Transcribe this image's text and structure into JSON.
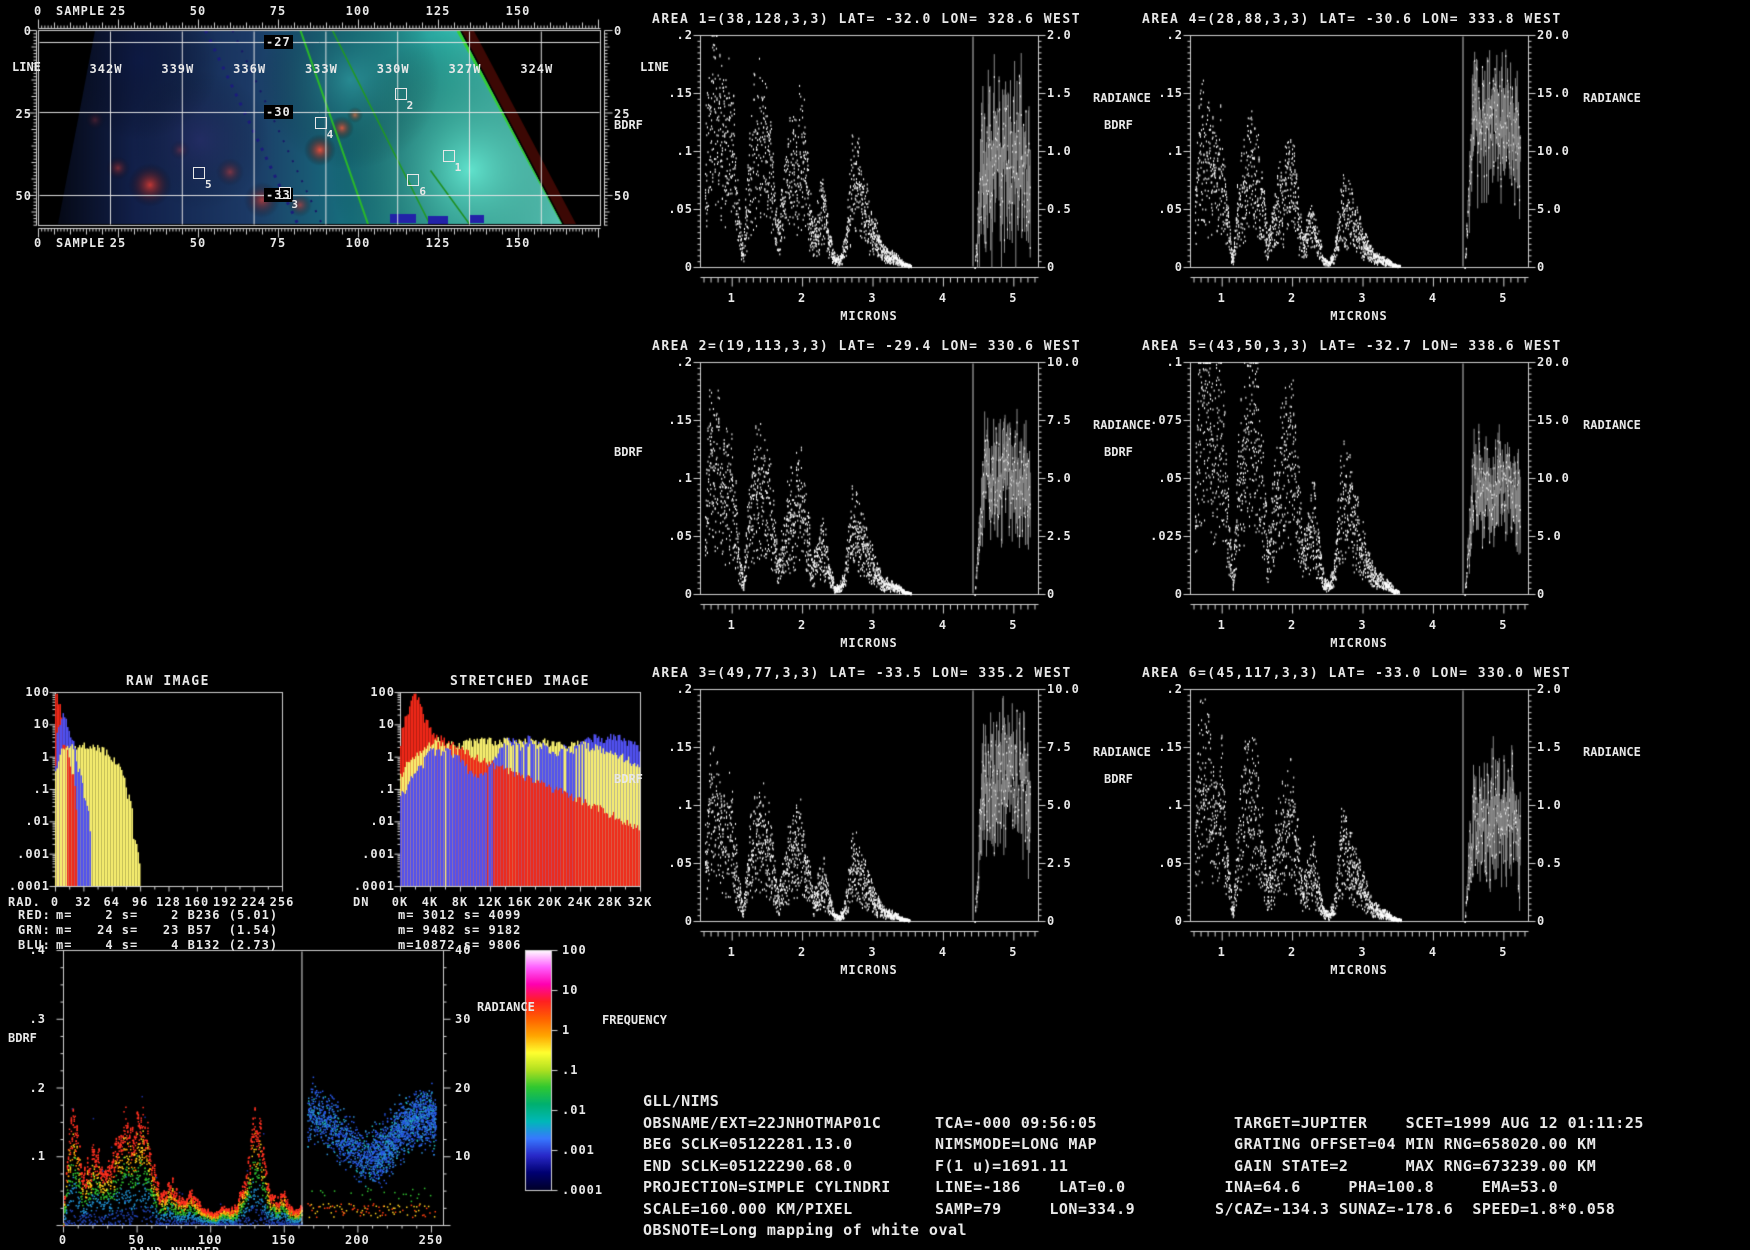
{
  "map_panel": {
    "sample_label": "SAMPLE",
    "line_label": "LINE",
    "sample_ticks": [
      "0",
      "25",
      "50",
      "75",
      "100",
      "125",
      "150"
    ],
    "line_ticks": [
      "0",
      "25",
      "50"
    ],
    "lon_labels": [
      "342W",
      "339W",
      "336W",
      "333W",
      "330W",
      "327W",
      "324W"
    ],
    "lat_labels": [
      "-27",
      "-30",
      "-33"
    ],
    "areas": [
      {
        "num": "1",
        "line": 38,
        "samp": 128
      },
      {
        "num": "2",
        "line": 19,
        "samp": 113
      },
      {
        "num": "3",
        "line": 49,
        "samp": 77
      },
      {
        "num": "4",
        "line": 28,
        "samp": 88
      },
      {
        "num": "5",
        "line": 43,
        "samp": 50
      },
      {
        "num": "6",
        "line": 45,
        "samp": 117
      }
    ]
  },
  "chart_data": {
    "spectra": [
      {
        "type": "scatter",
        "title": "AREA 1=(38,128,3,3) LAT= -32.0 LON= 328.6 WEST",
        "left_label": "BDRF",
        "right_label": "RADIANCE",
        "x_label": "MICRONS",
        "left_ticks": [
          ".2",
          ".15",
          ".1",
          ".05",
          "0"
        ],
        "right_ticks": [
          "2.0",
          "1.5",
          "1.0",
          "0.5",
          "0"
        ],
        "x_ticks": [
          "1",
          "2",
          "3",
          "4",
          "5"
        ],
        "xlim": [
          0.55,
          5.35
        ],
        "bdrf_max": 0.2,
        "rad_max": 2.0,
        "bdrf_peak": 0.18,
        "rad_mean": 0.85,
        "rad_spread": 0.5,
        "divider_x": 4.42,
        "seed": 101
      },
      {
        "type": "scatter",
        "title": "AREA 2=(19,113,3,3) LAT= -29.4 LON= 330.6 WEST",
        "left_label": "BDRF",
        "right_label": "RADIANCE",
        "x_label": "MICRONS",
        "left_ticks": [
          ".2",
          ".15",
          ".1",
          ".05",
          "0"
        ],
        "right_ticks": [
          "10.0",
          "7.5",
          "5.0",
          "2.5",
          "0"
        ],
        "x_ticks": [
          "1",
          "2",
          "3",
          "4",
          "5"
        ],
        "xlim": [
          0.55,
          5.35
        ],
        "bdrf_max": 0.2,
        "rad_max": 10.0,
        "bdrf_peak": 0.15,
        "rad_mean": 5.0,
        "rad_spread": 1.7,
        "divider_x": 4.42,
        "seed": 202
      },
      {
        "type": "scatter",
        "title": "AREA 3=(49,77,3,3) LAT= -33.5 LON= 335.2 WEST",
        "left_label": "BDRF",
        "right_label": "RADIANCE",
        "x_label": "MICRONS",
        "left_ticks": [
          ".2",
          ".15",
          ".1",
          ".05",
          "0"
        ],
        "right_ticks": [
          "10.0",
          "7.5",
          "5.0",
          "2.5",
          "0"
        ],
        "x_ticks": [
          "1",
          "2",
          "3",
          "4",
          "5"
        ],
        "xlim": [
          0.55,
          5.35
        ],
        "bdrf_max": 0.2,
        "rad_max": 10.0,
        "bdrf_peak": 0.12,
        "rad_mean": 6.2,
        "rad_spread": 1.9,
        "divider_x": 4.42,
        "seed": 303
      },
      {
        "type": "scatter",
        "title": "AREA 4=(28,88,3,3) LAT= -30.6 LON= 333.8 WEST",
        "left_label": "BDRF",
        "right_label": "RADIANCE",
        "x_label": "MICRONS",
        "left_ticks": [
          ".2",
          ".15",
          ".1",
          ".05",
          "0"
        ],
        "right_ticks": [
          "20.0",
          "15.0",
          "10.0",
          "5.0",
          "0"
        ],
        "x_ticks": [
          "1",
          "2",
          "3",
          "4",
          "5"
        ],
        "xlim": [
          0.55,
          5.35
        ],
        "bdrf_max": 0.2,
        "rad_max": 20.0,
        "bdrf_peak": 0.13,
        "rad_mean": 12.2,
        "rad_spread": 3.6,
        "divider_x": 4.42,
        "seed": 404
      },
      {
        "type": "scatter",
        "title": "AREA 5=(43,50,3,3) LAT= -32.7 LON= 338.6 WEST",
        "left_label": "BDRF",
        "right_label": "RADIANCE",
        "x_label": "MICRONS",
        "left_ticks": [
          ".1",
          ".075",
          ".05",
          ".025",
          "0"
        ],
        "right_ticks": [
          "20.0",
          "15.0",
          "10.0",
          "5.0",
          "0"
        ],
        "x_ticks": [
          "1",
          "2",
          "3",
          "4",
          "5"
        ],
        "xlim": [
          0.55,
          5.35
        ],
        "bdrf_max": 0.1,
        "rad_max": 20.0,
        "bdrf_peak": 0.11,
        "rad_mean": 9.3,
        "rad_spread": 2.9,
        "divider_x": 4.42,
        "seed": 505
      },
      {
        "type": "scatter",
        "title": "AREA 6=(45,117,3,3) LAT= -33.0 LON= 330.0 WEST",
        "left_label": "BDRF",
        "right_label": "RADIANCE",
        "x_label": "MICRONS",
        "left_ticks": [
          ".2",
          ".15",
          ".1",
          ".05",
          "0"
        ],
        "right_ticks": [
          "2.0",
          "1.5",
          "1.0",
          "0.5",
          "0"
        ],
        "x_ticks": [
          "1",
          "2",
          "3",
          "4",
          "5"
        ],
        "xlim": [
          0.55,
          5.35
        ],
        "bdrf_max": 0.2,
        "rad_max": 2.0,
        "bdrf_peak": 0.16,
        "rad_mean": 0.92,
        "rad_spread": 0.34,
        "divider_x": 4.42,
        "seed": 606
      }
    ],
    "spectrum_envelope": [
      [
        0.62,
        0.55
      ],
      [
        0.68,
        0.95
      ],
      [
        0.75,
        1.0
      ],
      [
        0.82,
        0.9
      ],
      [
        0.9,
        0.72
      ],
      [
        0.98,
        0.88
      ],
      [
        1.05,
        0.55
      ],
      [
        1.1,
        0.28
      ],
      [
        1.16,
        0.06
      ],
      [
        1.22,
        0.45
      ],
      [
        1.3,
        0.75
      ],
      [
        1.4,
        0.85
      ],
      [
        1.5,
        0.78
      ],
      [
        1.58,
        0.5
      ],
      [
        1.65,
        0.18
      ],
      [
        1.7,
        0.3
      ],
      [
        1.8,
        0.55
      ],
      [
        1.9,
        0.65
      ],
      [
        2.0,
        0.72
      ],
      [
        2.08,
        0.45
      ],
      [
        2.15,
        0.18
      ],
      [
        2.22,
        0.28
      ],
      [
        2.3,
        0.38
      ],
      [
        2.38,
        0.18
      ],
      [
        2.45,
        0.06
      ],
      [
        2.52,
        0.04
      ],
      [
        2.6,
        0.12
      ],
      [
        2.7,
        0.5
      ],
      [
        2.78,
        0.52
      ],
      [
        2.85,
        0.4
      ],
      [
        2.95,
        0.28
      ],
      [
        3.05,
        0.18
      ],
      [
        3.15,
        0.09
      ],
      [
        3.25,
        0.07
      ],
      [
        3.35,
        0.05
      ],
      [
        3.45,
        0.02
      ],
      [
        3.55,
        0.01
      ]
    ],
    "raw_histogram": {
      "type": "bar",
      "title": "RAW IMAGE",
      "x_prefix": "RAD.",
      "x_ticks": [
        "0",
        "32",
        "64",
        "96",
        "128",
        "160",
        "192",
        "224",
        "256"
      ],
      "y_ticks": [
        "100",
        "10",
        "1",
        ".1",
        ".01",
        ".001",
        ".0001"
      ],
      "ylim": [
        0.0001,
        100
      ],
      "series": [
        {
          "name": "red",
          "values": [
            100,
            3,
            0.5,
            0,
            0,
            0,
            0,
            0,
            0,
            0,
            0,
            0,
            0,
            0,
            0,
            0,
            0,
            0,
            0,
            0,
            0,
            0,
            0,
            0,
            0,
            0,
            0,
            0,
            0,
            0,
            0,
            0,
            0
          ]
        },
        {
          "name": "grn",
          "values": [
            0.3,
            1.8,
            2.3,
            1.9,
            2.4,
            1.7,
            2.1,
            1.5,
            0.9,
            0.45,
            0.08,
            0.003,
            0,
            0,
            0,
            0,
            0,
            0,
            0,
            0,
            0,
            0,
            0,
            0,
            0,
            0,
            0,
            0,
            0,
            0,
            0,
            0,
            0
          ]
        },
        {
          "name": "blu",
          "values": [
            0.5,
            20,
            5,
            0.5,
            0.05,
            0,
            0,
            0,
            0,
            0,
            0,
            0,
            0,
            0,
            0,
            0,
            0,
            0,
            0,
            0,
            0,
            0,
            0,
            0,
            0,
            0,
            0,
            0,
            0,
            0,
            0,
            0,
            0
          ]
        }
      ],
      "stats": [
        {
          "label": "RED:",
          "text": "m=    2 s=    2 B236 (5.01)",
          "color": "cred"
        },
        {
          "label": "GRN:",
          "text": "m=   24 s=   23 B57  (1.54)",
          "color": "cyel"
        },
        {
          "label": "BLU:",
          "text": "m=    4 s=    4 B132 (2.73)",
          "color": "cblu"
        }
      ]
    },
    "stretched_histogram": {
      "type": "bar",
      "title": "STRETCHED IMAGE",
      "x_prefix": "DN",
      "x_ticks": [
        "0K",
        "4K",
        "8K",
        "12K",
        "16K",
        "20K",
        "24K",
        "28K",
        "32K"
      ],
      "y_ticks": [
        "100",
        "10",
        "1",
        ".1",
        ".01",
        ".001",
        ".0001"
      ],
      "ylim": [
        0.0001,
        100
      ],
      "series": [
        {
          "name": "red",
          "values": [
            2.5,
            25,
            80,
            18,
            7,
            4,
            3,
            2.2,
            1.6,
            1.25,
            1.0,
            0.8,
            0.65,
            0.5,
            0.42,
            0.34,
            0.28,
            0.22,
            0.18,
            0.14,
            0.11,
            0.09,
            0.07,
            0.055,
            0.045,
            0.035,
            0.028,
            0.022,
            0.017,
            0.013,
            0.01,
            0.008,
            0.006
          ]
        },
        {
          "name": "grn",
          "values": [
            0.25,
            0.7,
            1.1,
            1.6,
            2.6,
            3.1,
            2.1,
            2.6,
            2.1,
            3.1,
            2.6,
            3.6,
            3.1,
            2.6,
            3.1,
            2.6,
            3.1,
            2.9,
            2.6,
            3.1,
            2.3,
            2.6,
            2.1,
            2.3,
            2.6,
            2.1,
            1.9,
            1.6,
            1.3,
            1.1,
            0.9,
            0.6,
            0.35
          ]
        },
        {
          "name": "blu",
          "values": [
            0.06,
            0.12,
            0.35,
            0.55,
            1.6,
            1.4,
            1.5,
            1.3,
            0.9,
            0.35,
            0.22,
            0.35,
            0.55,
            1.1,
            3.1,
            3.6,
            2.1,
            3.9,
            2.6,
            2.1,
            1.6,
            1.1,
            2.1,
            1.6,
            2.6,
            3.1,
            4.1,
            3.6,
            4.6,
            3.9,
            3.1,
            2.6,
            1.6
          ]
        }
      ],
      "stats": [
        {
          "label": "",
          "text": "m= 3012 s= 4099",
          "color": "cyel"
        },
        {
          "label": "",
          "text": "m= 9482 s= 9182",
          "color": "cyel"
        },
        {
          "label": "",
          "text": "m=10872 s= 9806",
          "color": "cyel"
        }
      ]
    },
    "band_plot": {
      "type": "heatmap",
      "y_label": "BDRF",
      "x_label": "BAND NUMBER",
      "right_label": "RADIANCE",
      "left_ticks": [
        ".4",
        ".3",
        ".2",
        ".1"
      ],
      "right_ticks": [
        "40",
        "30",
        "20",
        "10"
      ],
      "x_ticks": [
        "0",
        "50",
        "100",
        "150",
        "200",
        "250"
      ],
      "ylim": [
        0,
        0.4
      ],
      "right_ylim": [
        0,
        40
      ],
      "xlim": [
        0,
        253
      ],
      "divider_band": 162,
      "curve": [
        [
          0,
          0.02
        ],
        [
          4,
          0.12
        ],
        [
          7,
          0.15
        ],
        [
          10,
          0.11
        ],
        [
          14,
          0.07
        ],
        [
          18,
          0.09
        ],
        [
          22,
          0.11
        ],
        [
          26,
          0.09
        ],
        [
          30,
          0.08
        ],
        [
          34,
          0.1
        ],
        [
          38,
          0.13
        ],
        [
          42,
          0.15
        ],
        [
          46,
          0.13
        ],
        [
          50,
          0.14
        ],
        [
          54,
          0.15
        ],
        [
          58,
          0.12
        ],
        [
          62,
          0.07
        ],
        [
          66,
          0.04
        ],
        [
          70,
          0.05
        ],
        [
          74,
          0.06
        ],
        [
          78,
          0.04
        ],
        [
          82,
          0.03
        ],
        [
          86,
          0.045
        ],
        [
          90,
          0.035
        ],
        [
          94,
          0.025
        ],
        [
          98,
          0.02
        ],
        [
          102,
          0.015
        ],
        [
          106,
          0.02
        ],
        [
          110,
          0.025
        ],
        [
          114,
          0.02
        ],
        [
          118,
          0.03
        ],
        [
          122,
          0.06
        ],
        [
          126,
          0.1
        ],
        [
          130,
          0.15
        ],
        [
          134,
          0.13
        ],
        [
          138,
          0.07
        ],
        [
          142,
          0.04
        ],
        [
          146,
          0.035
        ],
        [
          150,
          0.045
        ],
        [
          154,
          0.025
        ],
        [
          158,
          0.02
        ],
        [
          162,
          0.025
        ]
      ],
      "cloud": {
        "band0": 166,
        "band1": 253,
        "center": 0.13,
        "half": 0.09
      },
      "seed": 7
    },
    "freq_bar": {
      "label": "FREQUENCY",
      "ticks": [
        "100",
        "10",
        "1",
        ".1",
        ".01",
        ".001",
        ".0001"
      ],
      "colors": [
        "#ffffff",
        "#ff60ff",
        "#ff00b0",
        "#ff2020",
        "#ff6000",
        "#ffa500",
        "#ffff30",
        "#b0e020",
        "#30c830",
        "#00b070",
        "#00b8b8",
        "#3878ff",
        "#2828c8",
        "#000070",
        "#000028"
      ]
    }
  },
  "info": {
    "rows": [
      [
        "GLL/NIMS",
        "",
        ""
      ],
      [
        "OBSNAME/EXT=22JNHOTMAP01C",
        "TCA=-000 09:56:05",
        "  TARGET=JUPITER    SCET=1999 AUG 12 01:11:25"
      ],
      [
        "BEG SCLK=05122281.13.0",
        "NIMSMODE=LONG MAP",
        "  GRATING OFFSET=04 MIN RNG=658020.00 KM"
      ],
      [
        "END SCLK=05122290.68.0",
        "F(1 u)=1691.11",
        "  GAIN STATE=2      MAX RNG=673239.00 KM"
      ],
      [
        "PROJECTION=SIMPLE CYLINDRI",
        "LINE=-186    LAT=0.0",
        " INA=64.6     PHA=100.8     EMA=53.0"
      ],
      [
        "SCALE=160.000 KM/PIXEL",
        "SAMP=79     LON=334.9",
        "S/CAZ=-134.3 SUNAZ=-178.6  SPEED=1.8*0.058"
      ],
      [
        "OBSNOTE=Long mapping of white oval",
        "",
        ""
      ]
    ]
  },
  "colors": {
    "frame": "#d0d0d0",
    "text": "#e8e8e8",
    "hist_red": "#f02818",
    "hist_yellow": "#f8f070",
    "hist_blue": "#5050f0",
    "map_sea": "#2fb4a8",
    "map_red": "#dc3c32",
    "map_green": "#2ab82a"
  }
}
